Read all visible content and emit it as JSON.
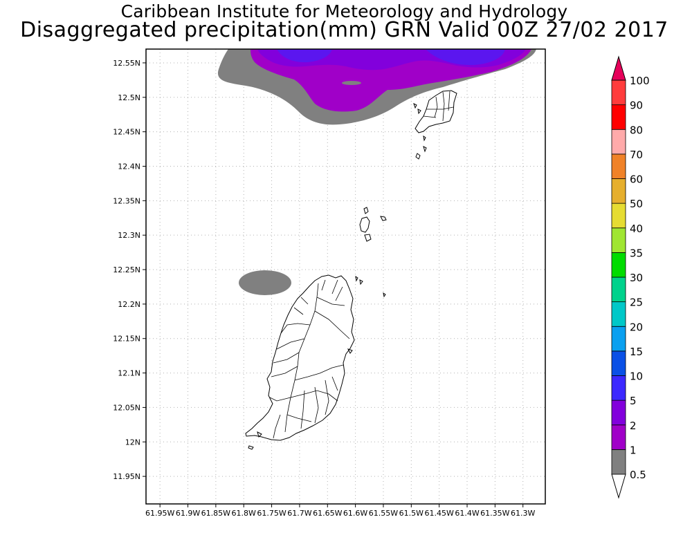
{
  "header": {
    "title": "Caribbean Institute for Meteorology and Hydrology",
    "subtitle": "Disaggregated precipitation(mm) GRN Valid 00Z 27/02 2017"
  },
  "map": {
    "lon_range": [
      -61.975,
      -61.26
    ],
    "lat_range": [
      11.91,
      12.57
    ],
    "lon_ticks": [
      {
        "value": -61.95,
        "label": "61.95W"
      },
      {
        "value": -61.9,
        "label": "61.9W"
      },
      {
        "value": -61.85,
        "label": "61.85W"
      },
      {
        "value": -61.8,
        "label": "61.8W"
      },
      {
        "value": -61.75,
        "label": "61.75W"
      },
      {
        "value": -61.7,
        "label": "61.7W"
      },
      {
        "value": -61.65,
        "label": "61.65W"
      },
      {
        "value": -61.6,
        "label": "61.6W"
      },
      {
        "value": -61.55,
        "label": "61.55W"
      },
      {
        "value": -61.5,
        "label": "61.5W"
      },
      {
        "value": -61.45,
        "label": "61.45W"
      },
      {
        "value": -61.4,
        "label": "61.4W"
      },
      {
        "value": -61.35,
        "label": "61.35W"
      },
      {
        "value": -61.3,
        "label": "61.3W"
      }
    ],
    "lat_ticks": [
      {
        "value": 12.55,
        "label": "12.55N"
      },
      {
        "value": 12.5,
        "label": "12.5N"
      },
      {
        "value": 12.45,
        "label": "12.45N"
      },
      {
        "value": 12.4,
        "label": "12.4N"
      },
      {
        "value": 12.35,
        "label": "12.35N"
      },
      {
        "value": 12.3,
        "label": "12.3N"
      },
      {
        "value": 12.25,
        "label": "12.25N"
      },
      {
        "value": 12.2,
        "label": "12.2N"
      },
      {
        "value": 12.15,
        "label": "12.15N"
      },
      {
        "value": 12.1,
        "label": "12.1N"
      },
      {
        "value": 12.05,
        "label": "12.05N"
      },
      {
        "value": 12.0,
        "label": "12N"
      },
      {
        "value": 11.95,
        "label": "11.95N"
      }
    ]
  },
  "colorbar": {
    "levels": [
      {
        "label": "0.5",
        "color": "#ffffff"
      },
      {
        "label": "1",
        "color": "#808080"
      },
      {
        "label": "2",
        "color": "#a000c8"
      },
      {
        "label": "5",
        "color": "#8200dc"
      },
      {
        "label": "10",
        "color": "#3c28ff"
      },
      {
        "label": "15",
        "color": "#0a50e6"
      },
      {
        "label": "20",
        "color": "#0aa0f0"
      },
      {
        "label": "25",
        "color": "#00c8c8"
      },
      {
        "label": "30",
        "color": "#00d28c"
      },
      {
        "label": "35",
        "color": "#00dc00"
      },
      {
        "label": "40",
        "color": "#a0e632"
      },
      {
        "label": "50",
        "color": "#e6dc32"
      },
      {
        "label": "60",
        "color": "#e6af2d"
      },
      {
        "label": "70",
        "color": "#f08228"
      },
      {
        "label": "80",
        "color": "#ffaaaa"
      },
      {
        "label": "90",
        "color": "#ff0000"
      },
      {
        "label": "100",
        "color": "#ff3c3c"
      }
    ],
    "top_color": "#e6005a"
  }
}
